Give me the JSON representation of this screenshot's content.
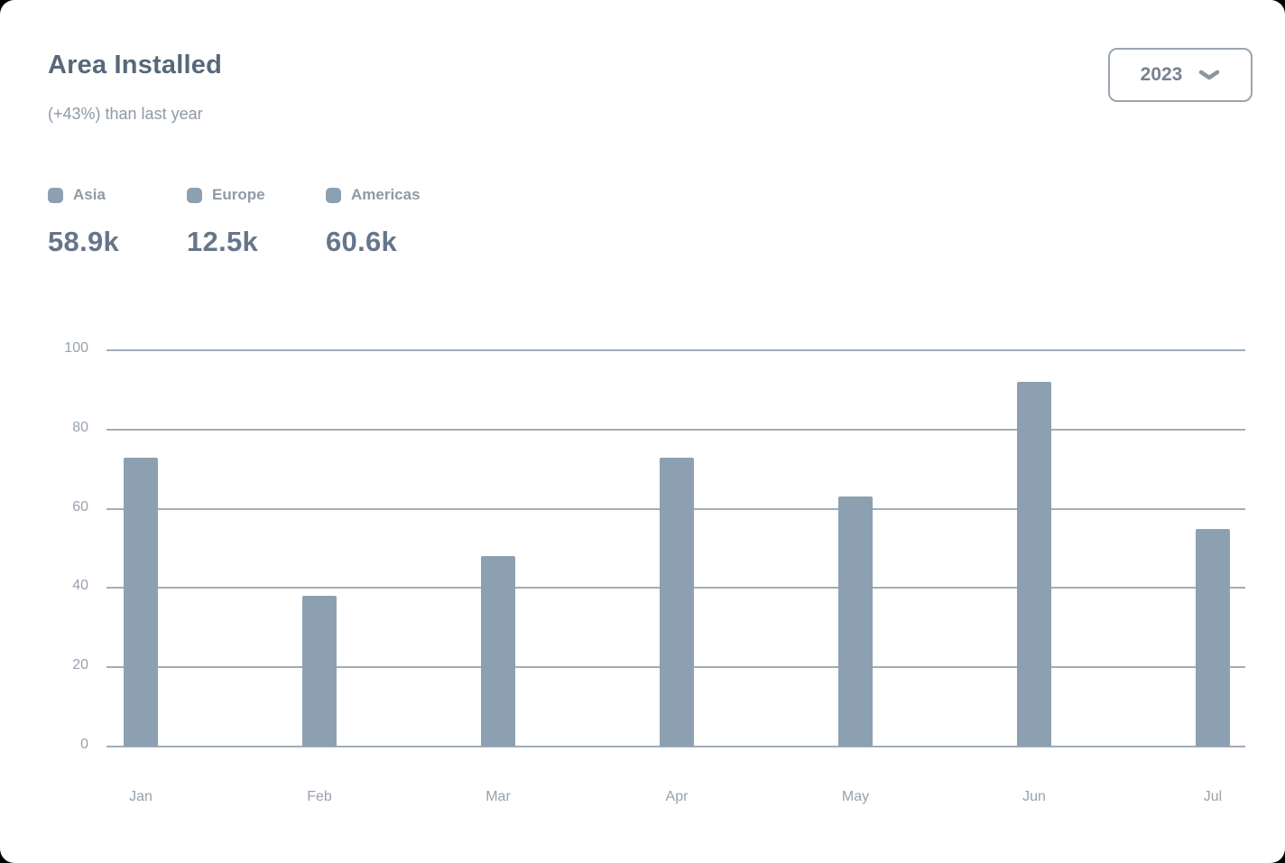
{
  "header": {
    "title": "Area Installed",
    "subtitle": "(+43%) than last year",
    "year_select": {
      "value": "2023",
      "icon": "chevron-down"
    }
  },
  "legend": {
    "items": [
      {
        "label": "Asia",
        "total": "58.9k",
        "color": "#8da0b2"
      },
      {
        "label": "Europe",
        "total": "12.5k",
        "color": "#8da0b2"
      },
      {
        "label": "Americas",
        "total": "60.6k",
        "color": "#8da0b2"
      }
    ]
  },
  "chart_data": {
    "type": "bar",
    "title": "Area Installed",
    "subtitle": "(+43%) than last year",
    "categories": [
      "Jan",
      "Feb",
      "Mar",
      "Apr",
      "May",
      "Jun",
      "Jul"
    ],
    "values": [
      73,
      38,
      48,
      73,
      63,
      92,
      55
    ],
    "xlabel": "",
    "ylabel": "",
    "ylim": [
      0,
      100
    ],
    "yticks": [
      0,
      20,
      40,
      60,
      80,
      100
    ],
    "grid": "horizontal",
    "legend_position": "top-left",
    "bar_color": "#8da0b2",
    "gridline_color": "#a2adb8",
    "axis_label_color": "#97a2ae"
  }
}
